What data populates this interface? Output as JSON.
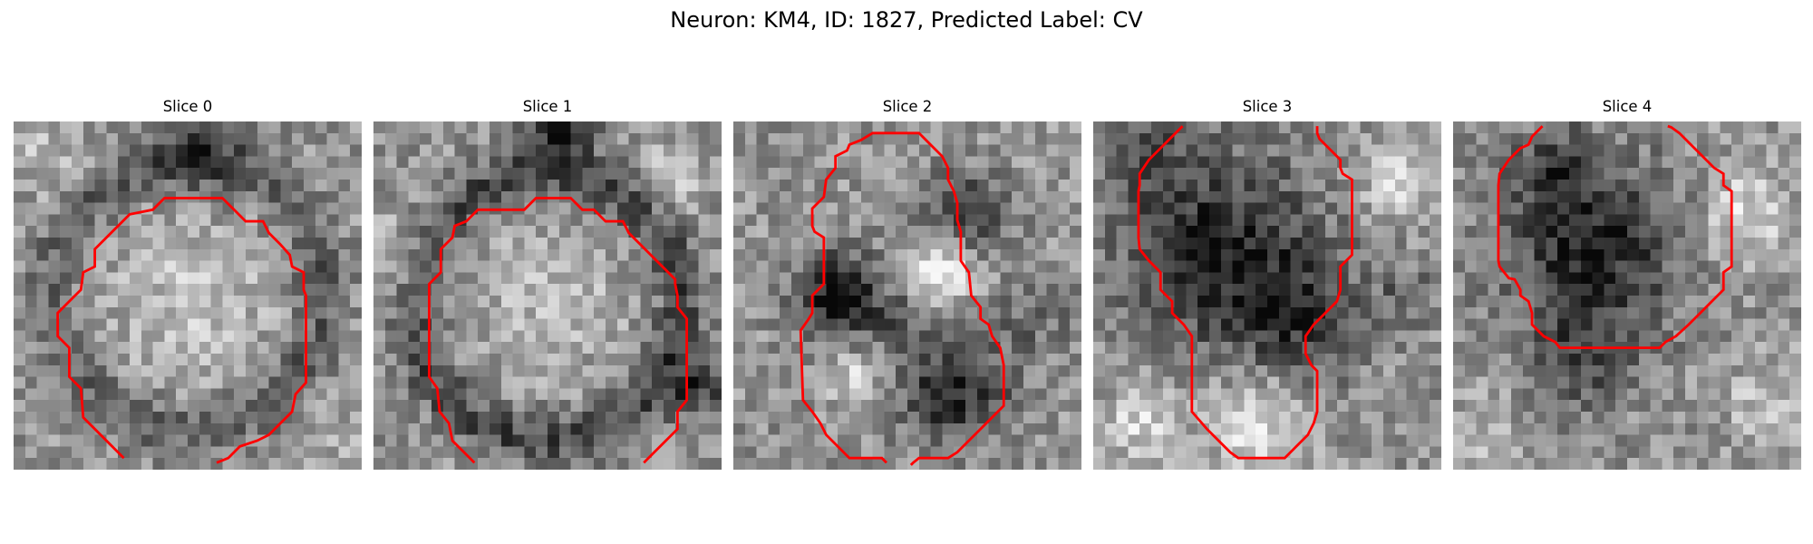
{
  "figure": {
    "title": "Neuron: KM4, ID: 1827, Predicted Label: CV",
    "colors": {
      "contour": "#ff0000",
      "background": "#ffffff"
    },
    "grid": 30,
    "panels": [
      {
        "title": "Slice 0",
        "seed": 11,
        "blobs": [
          {
            "cx": 15,
            "cy": 15,
            "r": 11.5,
            "v": -0.22,
            "ring": true,
            "rw": 2.2
          },
          {
            "cx": 15,
            "cy": 15,
            "r": 8.5,
            "v": 0.18
          },
          {
            "cx": 16,
            "cy": 2,
            "r": 5,
            "v": -0.25
          },
          {
            "cx": 3,
            "cy": 3,
            "r": 4,
            "v": 0.15
          },
          {
            "cx": 27,
            "cy": 27,
            "r": 4,
            "v": 0.1
          }
        ],
        "contour": [
          [
            9.5,
            29
          ],
          [
            6,
            25.5
          ],
          [
            5.8,
            23
          ],
          [
            4.8,
            22
          ],
          [
            4.8,
            19.5
          ],
          [
            3.8,
            18.5
          ],
          [
            3.8,
            17
          ],
          [
            3.8,
            16.5
          ],
          [
            4.8,
            15.5
          ],
          [
            5.8,
            14.5
          ],
          [
            6,
            13
          ],
          [
            7,
            12.5
          ],
          [
            7,
            11
          ],
          [
            8,
            10
          ],
          [
            9,
            9
          ],
          [
            10,
            8
          ],
          [
            12,
            7.6
          ],
          [
            13,
            6.6
          ],
          [
            18,
            6.6
          ],
          [
            19,
            7.6
          ],
          [
            20,
            8.6
          ],
          [
            21.5,
            8.6
          ],
          [
            22,
            9.6
          ],
          [
            23,
            10.6
          ],
          [
            23.8,
            11.5
          ],
          [
            24,
            12.5
          ],
          [
            25,
            13
          ],
          [
            25,
            14.5
          ],
          [
            25.2,
            15
          ],
          [
            25.2,
            22.5
          ],
          [
            24.3,
            23.5
          ],
          [
            24,
            25
          ],
          [
            23,
            26
          ],
          [
            22,
            27
          ],
          [
            21,
            27.5
          ],
          [
            19.5,
            28
          ],
          [
            18.5,
            29
          ],
          [
            17.5,
            29.4
          ]
        ]
      },
      {
        "title": "Slice 1",
        "seed": 23,
        "blobs": [
          {
            "cx": 15,
            "cy": 16,
            "r": 11.5,
            "v": -0.3,
            "ring": true,
            "rw": 2.2
          },
          {
            "cx": 15,
            "cy": 15,
            "r": 8,
            "v": 0.15
          },
          {
            "cx": 16,
            "cy": 1,
            "r": 3.5,
            "v": -0.45
          },
          {
            "cx": 2,
            "cy": 12,
            "r": 4,
            "v": 0.2
          },
          {
            "cx": 28,
            "cy": 23,
            "r": 3,
            "v": -0.35
          },
          {
            "cx": 26,
            "cy": 5,
            "r": 3,
            "v": 0.25
          }
        ],
        "contour": [
          [
            8.7,
            29.4
          ],
          [
            6.8,
            27.5
          ],
          [
            6.5,
            26
          ],
          [
            5.7,
            25
          ],
          [
            5.5,
            23
          ],
          [
            4.8,
            22
          ],
          [
            4.8,
            14
          ],
          [
            5.8,
            13
          ],
          [
            5.8,
            11
          ],
          [
            6.8,
            10
          ],
          [
            7,
            9
          ],
          [
            8,
            8.6
          ],
          [
            9,
            7.6
          ],
          [
            10,
            7.6
          ],
          [
            13,
            7.6
          ],
          [
            14,
            6.6
          ],
          [
            17,
            6.6
          ],
          [
            18,
            7.6
          ],
          [
            19,
            7.6
          ],
          [
            20,
            8.6
          ],
          [
            21.5,
            8.6
          ],
          [
            22,
            9.6
          ],
          [
            23,
            10.6
          ],
          [
            24,
            11.6
          ],
          [
            25,
            12.6
          ],
          [
            26,
            13.6
          ],
          [
            26,
            14
          ],
          [
            26.2,
            15
          ],
          [
            26.2,
            16
          ],
          [
            27,
            17
          ],
          [
            27,
            24
          ],
          [
            26.2,
            25
          ],
          [
            26.2,
            26.5
          ],
          [
            25.2,
            27.5
          ],
          [
            24.2,
            28.5
          ],
          [
            23.3,
            29.4
          ]
        ]
      },
      {
        "title": "Slice 2",
        "seed": 37,
        "blobs": [
          {
            "cx": 9,
            "cy": 15,
            "r": 4.5,
            "v": -0.5
          },
          {
            "cx": 19,
            "cy": 23,
            "r": 5.5,
            "v": -0.45
          },
          {
            "cx": 20,
            "cy": 8,
            "r": 4,
            "v": -0.35
          },
          {
            "cx": 18,
            "cy": 13,
            "r": 3.5,
            "v": 0.35
          },
          {
            "cx": 10,
            "cy": 22,
            "r": 3,
            "v": 0.25
          },
          {
            "cx": 26,
            "cy": 17,
            "r": 4,
            "v": -0.15
          },
          {
            "cx": 14,
            "cy": 17,
            "r": 2.5,
            "v": -0.2
          }
        ],
        "contour": [
          [
            13.2,
            29.4
          ],
          [
            12.8,
            29
          ],
          [
            10,
            29
          ],
          [
            9,
            28
          ],
          [
            8,
            27
          ],
          [
            7.5,
            26
          ],
          [
            6.8,
            25
          ],
          [
            6,
            24
          ],
          [
            5.8,
            18
          ],
          [
            6.5,
            17
          ],
          [
            6.8,
            16.5
          ],
          [
            6.8,
            15
          ],
          [
            7.8,
            14
          ],
          [
            7.8,
            10
          ],
          [
            7,
            9.5
          ],
          [
            6.8,
            9
          ],
          [
            6.8,
            7.5
          ],
          [
            7.8,
            6.5
          ],
          [
            8,
            5
          ],
          [
            8.8,
            4
          ],
          [
            8.8,
            3
          ],
          [
            9.8,
            2.5
          ],
          [
            10,
            2
          ],
          [
            11,
            1.6
          ],
          [
            12,
            1
          ],
          [
            16,
            1
          ],
          [
            17,
            2
          ],
          [
            18,
            3
          ],
          [
            18.5,
            4
          ],
          [
            18.5,
            5
          ],
          [
            19,
            6
          ],
          [
            19.3,
            7
          ],
          [
            19.3,
            8.5
          ],
          [
            19.6,
            9.5
          ],
          [
            19.6,
            12
          ],
          [
            20.3,
            13
          ],
          [
            20.5,
            15
          ],
          [
            21.3,
            16
          ],
          [
            21.3,
            17
          ],
          [
            22,
            17.5
          ],
          [
            22.3,
            18.5
          ],
          [
            23,
            19.5
          ],
          [
            23.3,
            21
          ],
          [
            23.3,
            24.5
          ],
          [
            22.3,
            25.5
          ],
          [
            21.3,
            26.5
          ],
          [
            20.3,
            27.5
          ],
          [
            19.3,
            28.5
          ],
          [
            18.5,
            29
          ],
          [
            16,
            29
          ],
          [
            15.5,
            29.4
          ],
          [
            15.3,
            29.6
          ]
        ]
      },
      {
        "title": "Slice 3",
        "seed": 53,
        "blobs": [
          {
            "cx": 11,
            "cy": 11,
            "r": 10,
            "v": -0.45
          },
          {
            "cx": 18,
            "cy": 17,
            "r": 6,
            "v": -0.3
          },
          {
            "cx": 5,
            "cy": 3,
            "r": 4,
            "v": -0.2
          },
          {
            "cx": 14,
            "cy": 26,
            "r": 5,
            "v": 0.3
          },
          {
            "cx": 26,
            "cy": 5,
            "r": 4,
            "v": 0.25
          },
          {
            "cx": 4,
            "cy": 26,
            "r": 4,
            "v": 0.25
          },
          {
            "cx": 27,
            "cy": 15,
            "r": 3,
            "v": -0.2
          }
        ],
        "contour": [
          [
            7.7,
            0.4
          ],
          [
            6.8,
            1.3
          ],
          [
            5.8,
            2.3
          ],
          [
            4.8,
            3.3
          ],
          [
            4,
            4.5
          ],
          [
            4,
            5.5
          ],
          [
            3.9,
            6
          ],
          [
            3.9,
            10
          ],
          [
            4,
            11
          ],
          [
            4.8,
            12
          ],
          [
            5.8,
            13
          ],
          [
            5.8,
            14.5
          ],
          [
            6.8,
            15.5
          ],
          [
            6.8,
            16.5
          ],
          [
            7.8,
            17.5
          ],
          [
            8.5,
            18.5
          ],
          [
            8.5,
            25
          ],
          [
            9.8,
            26.5
          ],
          [
            10.8,
            27.5
          ],
          [
            11.8,
            28.5
          ],
          [
            12.5,
            29
          ],
          [
            16.5,
            29
          ],
          [
            17.5,
            28
          ],
          [
            18.5,
            27
          ],
          [
            19,
            26
          ],
          [
            19.3,
            25
          ],
          [
            19.3,
            21.5
          ],
          [
            18.8,
            21
          ],
          [
            18.3,
            20
          ],
          [
            18.3,
            18.5
          ],
          [
            19,
            17.5
          ],
          [
            20,
            16.5
          ],
          [
            21,
            15.5
          ],
          [
            21.3,
            14.5
          ],
          [
            21.3,
            12.5
          ],
          [
            22.3,
            11.5
          ],
          [
            22.3,
            5
          ],
          [
            21.5,
            4.5
          ],
          [
            21.3,
            4
          ],
          [
            21.3,
            3.3
          ],
          [
            20.5,
            2.5
          ],
          [
            19.5,
            1.5
          ],
          [
            19.3,
            1
          ],
          [
            19.3,
            0.4
          ]
        ]
      },
      {
        "title": "Slice 4",
        "seed": 71,
        "blobs": [
          {
            "cx": 12,
            "cy": 11,
            "r": 9,
            "v": -0.45
          },
          {
            "cx": 9,
            "cy": 4,
            "r": 4,
            "v": -0.25
          },
          {
            "cx": 11,
            "cy": 21,
            "r": 5,
            "v": -0.25
          },
          {
            "cx": 25,
            "cy": 8,
            "r": 4.5,
            "v": 0.3
          },
          {
            "cx": 27,
            "cy": 24,
            "r": 4,
            "v": 0.2
          },
          {
            "cx": 3,
            "cy": 27,
            "r": 3.5,
            "v": 0.15
          }
        ],
        "contour": [
          [
            7.7,
            0.4
          ],
          [
            6.8,
            1.3
          ],
          [
            6.5,
            2
          ],
          [
            5.8,
            2.3
          ],
          [
            4.8,
            3.3
          ],
          [
            4,
            4.5
          ],
          [
            3.9,
            5.5
          ],
          [
            3.9,
            12
          ],
          [
            4,
            12.5
          ],
          [
            4.8,
            13.5
          ],
          [
            5.3,
            13.6
          ],
          [
            5.8,
            14.5
          ],
          [
            5.8,
            15
          ],
          [
            6.5,
            15.5
          ],
          [
            6.8,
            16.5
          ],
          [
            6.8,
            17.5
          ],
          [
            7.8,
            18.5
          ],
          [
            8.8,
            19
          ],
          [
            9.2,
            19.5
          ],
          [
            17.8,
            19.5
          ],
          [
            18.3,
            19
          ],
          [
            19.2,
            18.5
          ],
          [
            20.3,
            17.5
          ],
          [
            21.3,
            16.5
          ],
          [
            22.3,
            15.5
          ],
          [
            23.3,
            14.5
          ],
          [
            23.3,
            13
          ],
          [
            24,
            12.5
          ],
          [
            24,
            6
          ],
          [
            23.3,
            5.5
          ],
          [
            23.3,
            4.5
          ],
          [
            22.5,
            4
          ],
          [
            21.5,
            3
          ],
          [
            20.5,
            2
          ],
          [
            19.5,
            1
          ],
          [
            18.8,
            0.5
          ],
          [
            18.5,
            0.4
          ]
        ]
      }
    ]
  }
}
